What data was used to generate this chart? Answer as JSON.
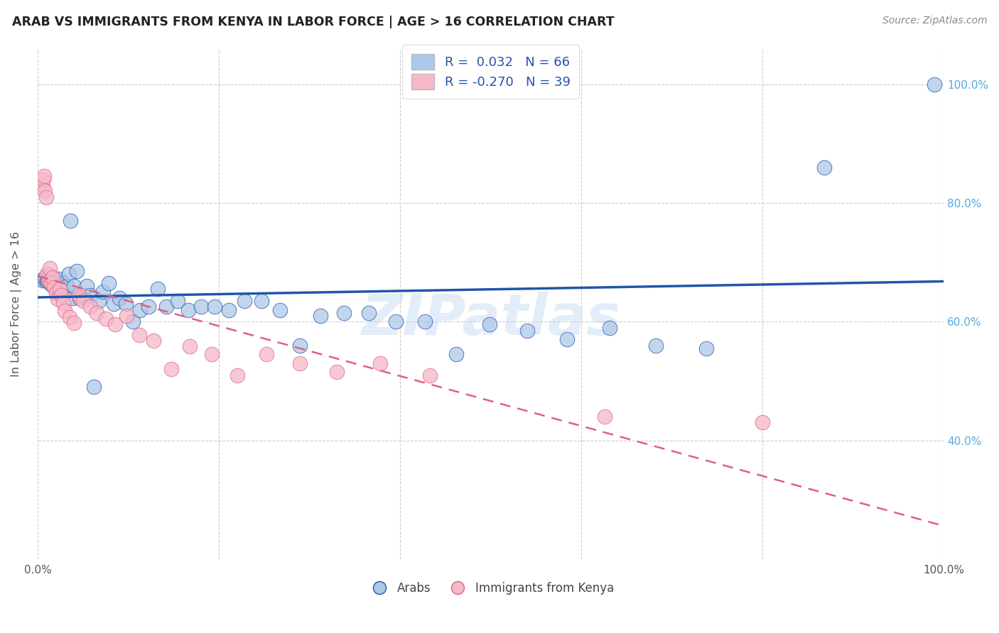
{
  "title": "ARAB VS IMMIGRANTS FROM KENYA IN LABOR FORCE | AGE > 16 CORRELATION CHART",
  "source": "Source: ZipAtlas.com",
  "ylabel": "In Labor Force | Age > 16",
  "xlim": [
    0.0,
    1.0
  ],
  "ylim": [
    0.2,
    1.06
  ],
  "color_arab": "#adc8e8",
  "color_kenya": "#f5b8c8",
  "color_line_arab": "#2255aa",
  "color_line_kenya": "#e06080",
  "color_right_axis": "#55aadd",
  "watermark": "ZIPatlas",
  "legend_text_color": "#2255aa",
  "arab_x": [
    0.005,
    0.007,
    0.008,
    0.01,
    0.011,
    0.012,
    0.013,
    0.014,
    0.015,
    0.016,
    0.017,
    0.018,
    0.019,
    0.02,
    0.021,
    0.022,
    0.023,
    0.025,
    0.027,
    0.028,
    0.03,
    0.032,
    0.034,
    0.036,
    0.038,
    0.04,
    0.043,
    0.046,
    0.05,
    0.054,
    0.058,
    0.062,
    0.067,
    0.072,
    0.078,
    0.084,
    0.09,
    0.097,
    0.105,
    0.113,
    0.122,
    0.132,
    0.142,
    0.154,
    0.166,
    0.18,
    0.195,
    0.211,
    0.228,
    0.247,
    0.267,
    0.289,
    0.312,
    0.338,
    0.365,
    0.395,
    0.427,
    0.462,
    0.499,
    0.54,
    0.584,
    0.631,
    0.682,
    0.738,
    0.868,
    0.99
  ],
  "arab_y": [
    0.67,
    0.672,
    0.674,
    0.668,
    0.671,
    0.675,
    0.678,
    0.665,
    0.662,
    0.668,
    0.673,
    0.665,
    0.66,
    0.658,
    0.665,
    0.67,
    0.672,
    0.655,
    0.66,
    0.665,
    0.65,
    0.66,
    0.68,
    0.77,
    0.64,
    0.66,
    0.685,
    0.64,
    0.645,
    0.66,
    0.645,
    0.49,
    0.635,
    0.65,
    0.665,
    0.63,
    0.64,
    0.63,
    0.6,
    0.62,
    0.625,
    0.655,
    0.625,
    0.635,
    0.62,
    0.625,
    0.625,
    0.62,
    0.635,
    0.635,
    0.62,
    0.56,
    0.61,
    0.615,
    0.615,
    0.6,
    0.6,
    0.545,
    0.595,
    0.585,
    0.57,
    0.59,
    0.56,
    0.555,
    0.86,
    1.0
  ],
  "kenya_x": [
    0.005,
    0.006,
    0.007,
    0.008,
    0.009,
    0.01,
    0.012,
    0.013,
    0.015,
    0.016,
    0.018,
    0.02,
    0.022,
    0.024,
    0.026,
    0.028,
    0.03,
    0.035,
    0.04,
    0.045,
    0.05,
    0.058,
    0.065,
    0.075,
    0.085,
    0.098,
    0.112,
    0.128,
    0.147,
    0.168,
    0.192,
    0.22,
    0.252,
    0.289,
    0.33,
    0.378,
    0.433,
    0.626,
    0.8
  ],
  "kenya_y": [
    0.83,
    0.84,
    0.845,
    0.82,
    0.81,
    0.68,
    0.668,
    0.69,
    0.665,
    0.675,
    0.658,
    0.648,
    0.638,
    0.655,
    0.645,
    0.632,
    0.618,
    0.608,
    0.598,
    0.645,
    0.635,
    0.625,
    0.615,
    0.605,
    0.595,
    0.61,
    0.578,
    0.568,
    0.52,
    0.558,
    0.545,
    0.51,
    0.545,
    0.53,
    0.515,
    0.53,
    0.51,
    0.44,
    0.43
  ]
}
